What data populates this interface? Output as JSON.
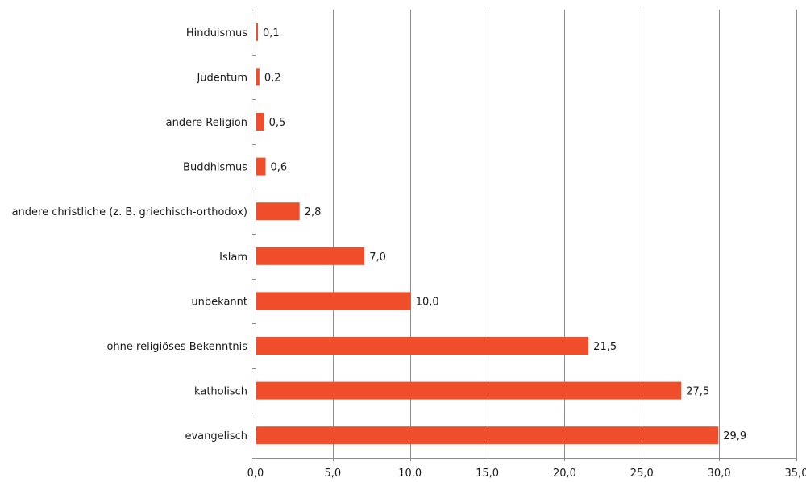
{
  "chart_data": {
    "type": "bar",
    "orientation": "horizontal",
    "categories": [
      "Hinduismus",
      "Judentum",
      "andere Religion",
      "Buddhismus",
      "andere christliche (z. B. griechisch-orthodox)",
      "Islam",
      "unbekannt",
      "ohne religiöses Bekenntnis",
      "katholisch",
      "evangelisch"
    ],
    "values": [
      0.1,
      0.2,
      0.5,
      0.6,
      2.8,
      7.0,
      10.0,
      21.5,
      27.5,
      29.9
    ],
    "value_labels": [
      "0,1",
      "0,2",
      "0,5",
      "0,6",
      "2,8",
      "7,0",
      "10,0",
      "21,5",
      "27,5",
      "29,9"
    ],
    "xlim": [
      0,
      35
    ],
    "xticks": [
      0,
      5,
      10,
      15,
      20,
      25,
      30,
      35
    ],
    "xtick_labels": [
      "0,0",
      "5,0",
      "10,0",
      "15,0",
      "20,0",
      "25,0",
      "30,0",
      "35,0"
    ],
    "grid": "vertical",
    "bar_color": "#f04e2b"
  }
}
